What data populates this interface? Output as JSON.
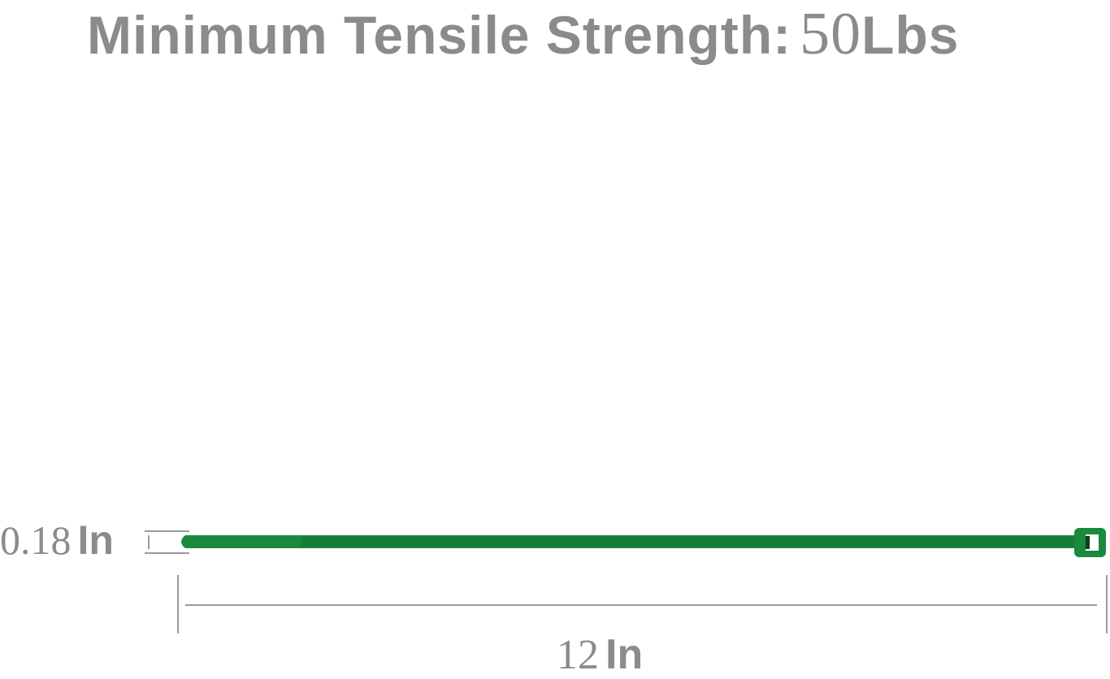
{
  "title": {
    "label": "Minimum Tensile Strength:",
    "value": "50",
    "unit": "Lbs"
  },
  "width_dimension": {
    "value": "0.18",
    "unit": "In"
  },
  "length_dimension": {
    "value": "12",
    "unit": "In"
  },
  "colors": {
    "text": "#8b8b8b",
    "cable_tie": "#1a8a3c",
    "cable_tie_dark": "#127330",
    "dimension_lines": "#9a9a9a"
  }
}
